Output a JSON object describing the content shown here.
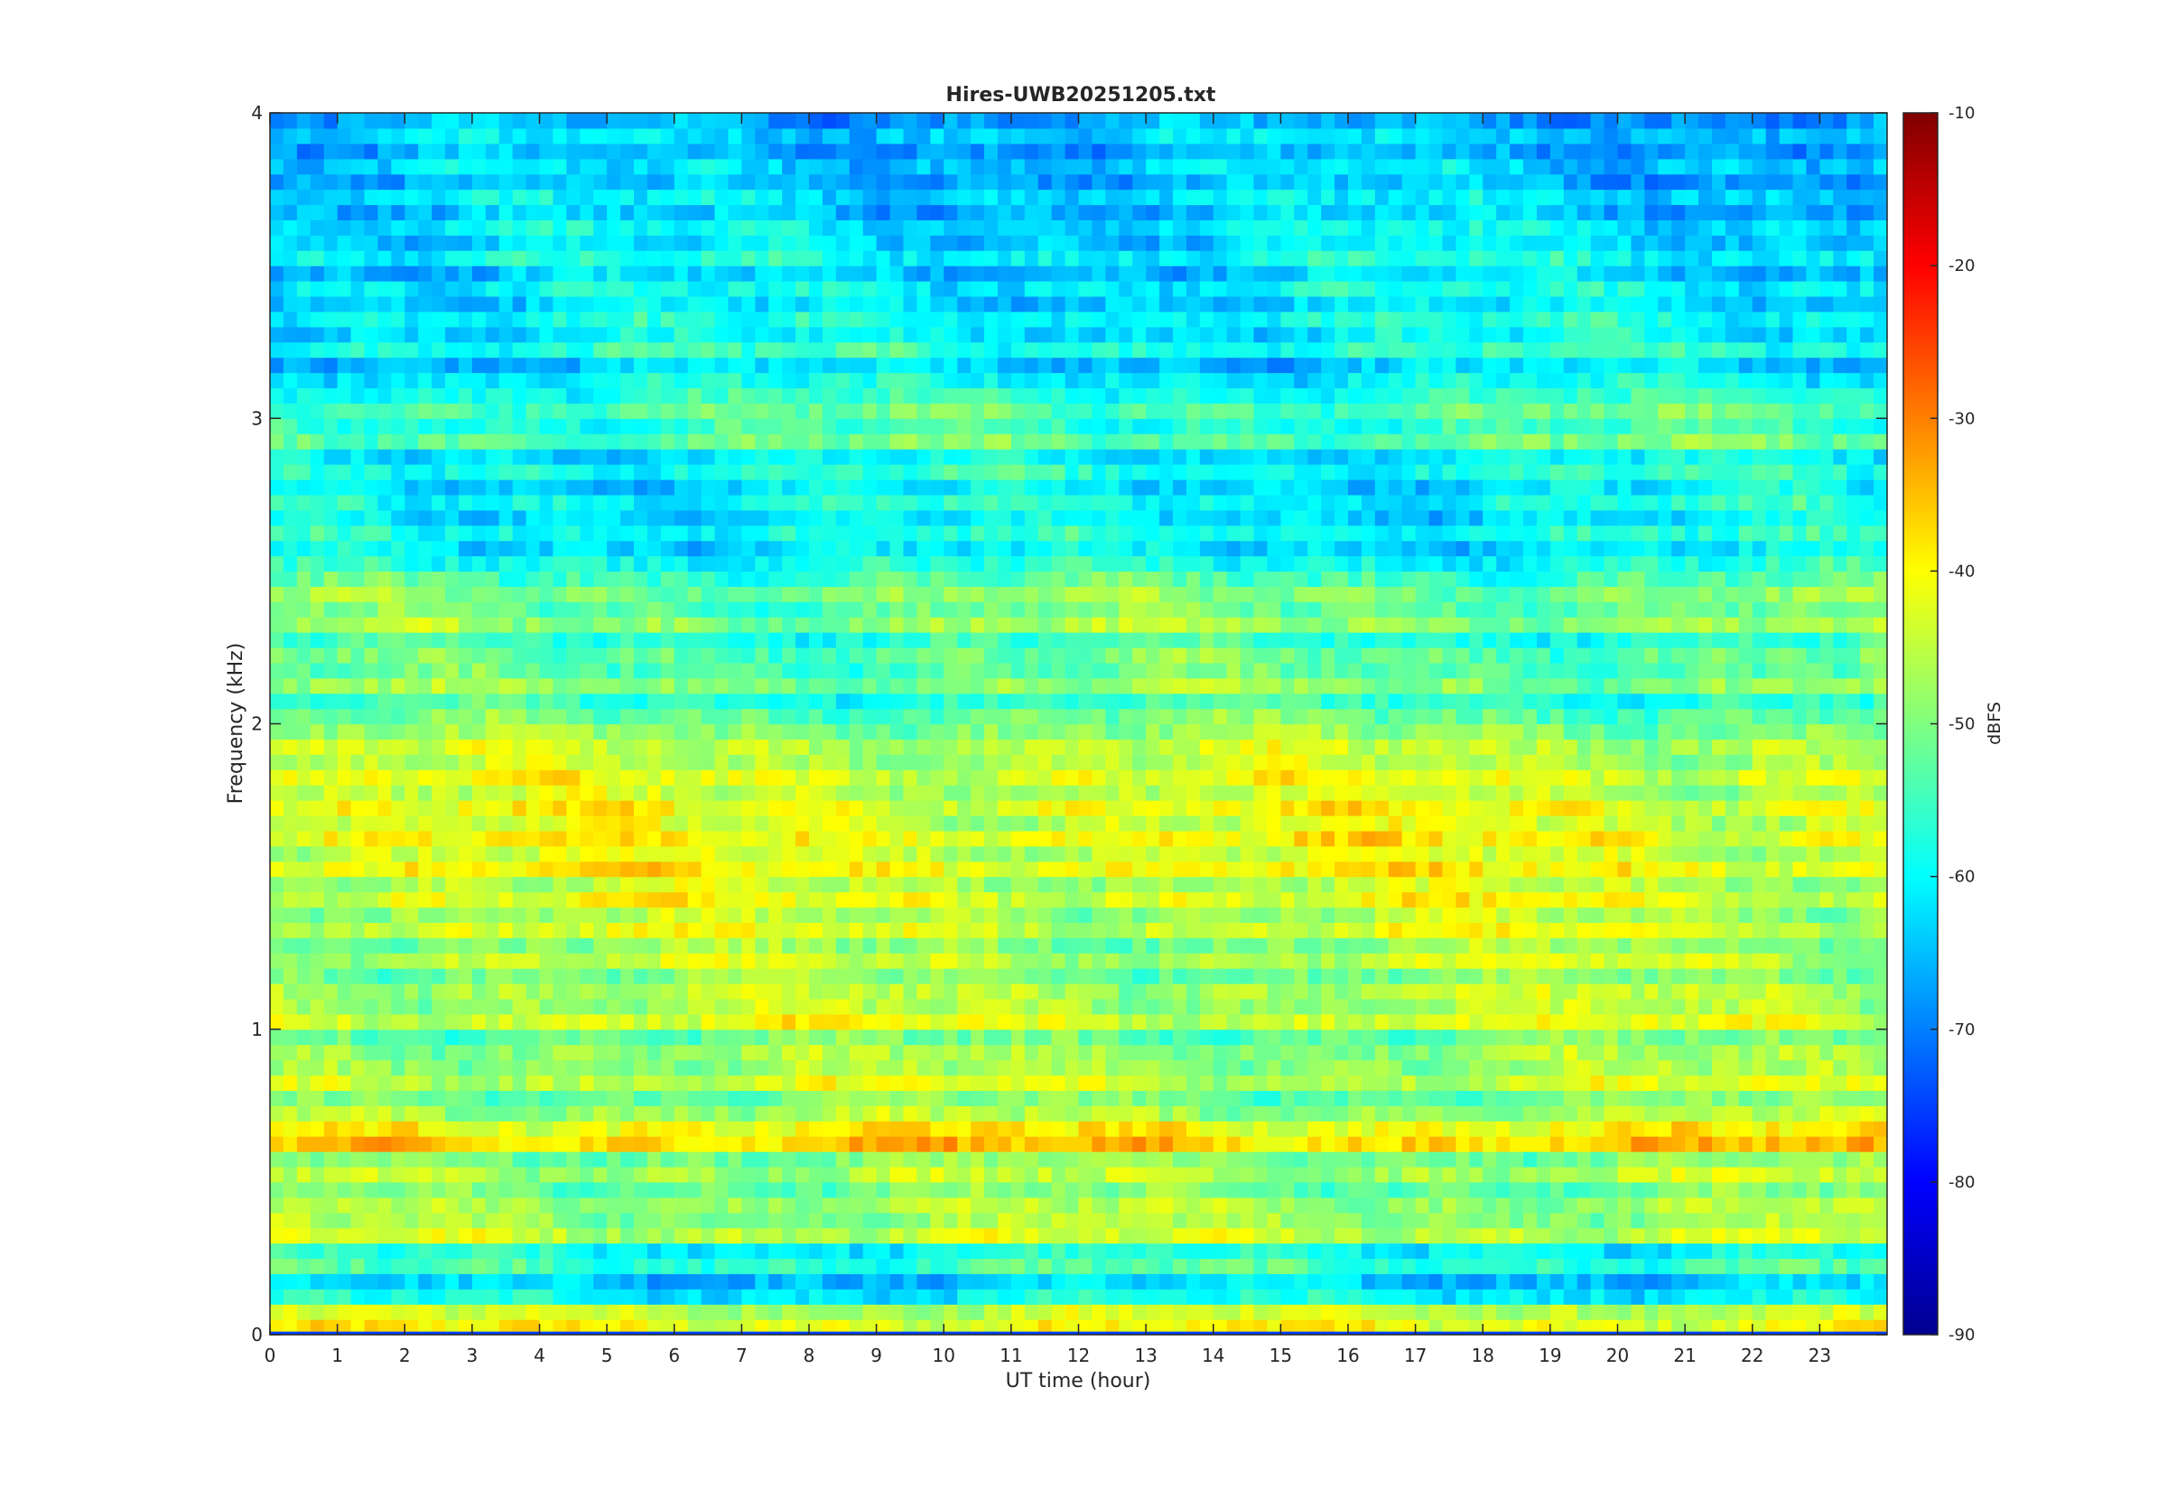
{
  "chart_data": {
    "type": "heatmap",
    "title": "Hires-UWB20251205.txt",
    "xlabel": "UT time (hour)",
    "ylabel": "Frequency (kHz)",
    "xlim": [
      0,
      24
    ],
    "ylim": [
      0,
      4
    ],
    "xticks": [
      "0",
      "1",
      "2",
      "3",
      "4",
      "5",
      "6",
      "7",
      "8",
      "9",
      "10",
      "11",
      "12",
      "13",
      "14",
      "15",
      "16",
      "17",
      "18",
      "19",
      "20",
      "21",
      "22",
      "23"
    ],
    "yticks": [
      "0",
      "1",
      "2",
      "3",
      "4"
    ],
    "colorbar": {
      "label": "dBFS",
      "range": [
        -90,
        -10
      ],
      "colormap": "jet",
      "ticks": [
        "-10",
        "-20",
        "-30",
        "-40",
        "-50",
        "-60",
        "-70",
        "-80",
        "-90"
      ]
    },
    "bands_khz_dbfs": [
      [
        0.05,
        -41
      ],
      [
        0.15,
        -60
      ],
      [
        0.25,
        -55
      ],
      [
        0.35,
        -44
      ],
      [
        0.45,
        -47
      ],
      [
        0.55,
        -46
      ],
      [
        0.65,
        -36
      ],
      [
        0.75,
        -47
      ],
      [
        0.85,
        -44
      ],
      [
        0.95,
        -48
      ],
      [
        1.05,
        -43
      ],
      [
        1.15,
        -46
      ],
      [
        1.25,
        -45
      ],
      [
        1.35,
        -43
      ],
      [
        1.45,
        -42
      ],
      [
        1.55,
        -40
      ],
      [
        1.65,
        -40
      ],
      [
        1.75,
        -41
      ],
      [
        1.85,
        -42
      ],
      [
        1.95,
        -45
      ],
      [
        2.05,
        -52
      ],
      [
        2.15,
        -49
      ],
      [
        2.25,
        -52
      ],
      [
        2.35,
        -48
      ],
      [
        2.45,
        -50
      ],
      [
        2.55,
        -58
      ],
      [
        2.65,
        -58
      ],
      [
        2.75,
        -58
      ],
      [
        2.85,
        -57
      ],
      [
        2.95,
        -52
      ],
      [
        3.05,
        -53
      ],
      [
        3.15,
        -60
      ],
      [
        3.25,
        -57
      ],
      [
        3.35,
        -59
      ],
      [
        3.45,
        -60
      ],
      [
        3.55,
        -59
      ],
      [
        3.65,
        -61
      ],
      [
        3.75,
        -62
      ],
      [
        3.85,
        -63
      ],
      [
        3.95,
        -63
      ]
    ],
    "grid": false,
    "legend": "none"
  }
}
